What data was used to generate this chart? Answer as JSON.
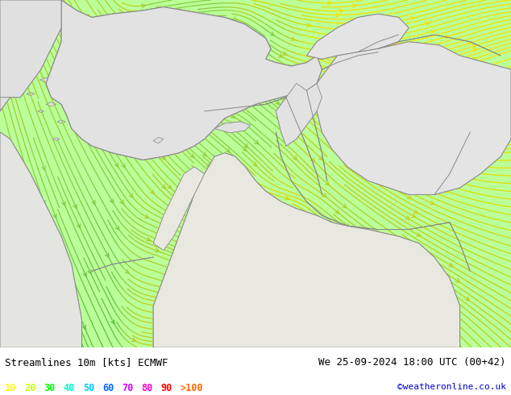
{
  "title_left": "Streamlines 10m [kts] ECMWF",
  "title_right": "We 25-09-2024 18:00 UTC (00+42)",
  "credit": "©weatheronline.co.uk",
  "legend_values": [
    "10",
    "20",
    "30",
    "40",
    "50",
    "60",
    "70",
    "80",
    "90",
    ">100"
  ],
  "legend_colors": [
    "#ffff00",
    "#ccff00",
    "#00ff00",
    "#00ffcc",
    "#00ccff",
    "#0066ff",
    "#cc00ff",
    "#ff00cc",
    "#ff0000",
    "#ff6600"
  ],
  "bg_color": "#bbff99",
  "land_color": "#e0e0e0",
  "text_color": "#000000",
  "stream_color_sea": "#ffcc00",
  "stream_color_land": "#88cc44",
  "border_color": "#888888",
  "figsize": [
    6.34,
    4.9
  ],
  "dpi": 100
}
